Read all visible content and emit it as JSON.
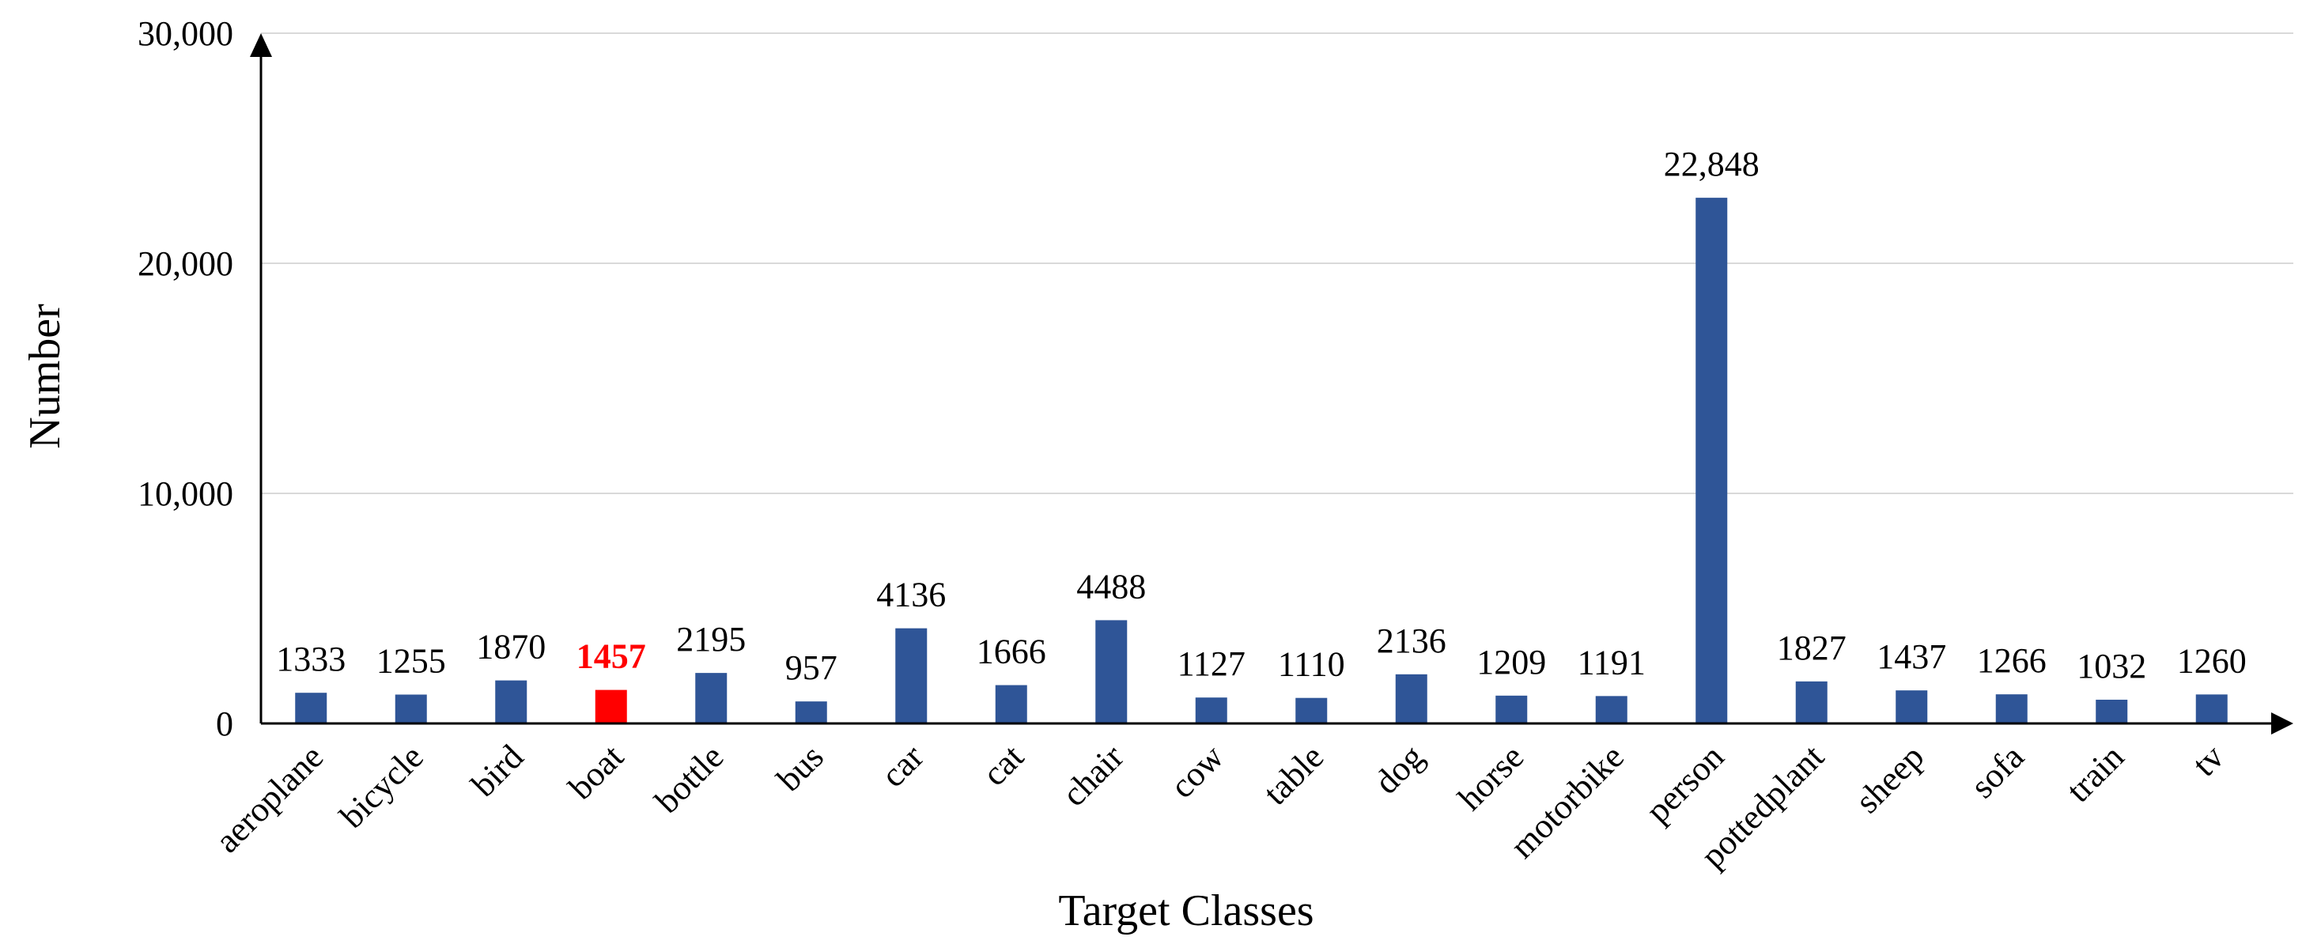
{
  "chart_data": {
    "type": "bar",
    "categories": [
      "aeroplane",
      "bicycle",
      "bird",
      "boat",
      "bottle",
      "bus",
      "car",
      "cat",
      "chair",
      "cow",
      "table",
      "dog",
      "horse",
      "motorbike",
      "person",
      "pottedplant",
      "sheep",
      "sofa",
      "train",
      "tv"
    ],
    "values": [
      1333,
      1255,
      1870,
      1457,
      2195,
      957,
      4136,
      1666,
      4488,
      1127,
      1110,
      2136,
      1209,
      1191,
      22848,
      1827,
      1437,
      1266,
      1032,
      1260
    ],
    "value_labels": [
      "1333",
      "1255",
      "1870",
      "1457",
      "2195",
      "957",
      "4136",
      "1666",
      "4488",
      "1127",
      "1110",
      "2136",
      "1209",
      "1191",
      "22,848",
      "1827",
      "1437",
      "1266",
      "1032",
      "1260"
    ],
    "highlight_category": "boat",
    "xlabel": "Target Classes",
    "ylabel": "Number",
    "ylim": [
      0,
      30000
    ],
    "yticks": [
      0,
      10000,
      20000,
      30000
    ],
    "ytick_labels": [
      "0",
      "10,000",
      "20,000",
      "30,000"
    ],
    "grid": true,
    "bar_color": "#2f5597",
    "highlight_color": "#ff0000"
  }
}
